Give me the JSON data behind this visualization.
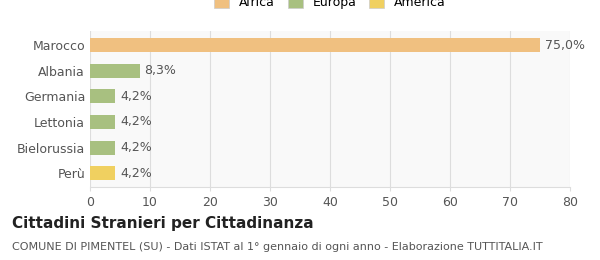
{
  "categories": [
    "Marocco",
    "Albania",
    "Germania",
    "Lettonia",
    "Bielorussia",
    "Perù"
  ],
  "values": [
    75.0,
    8.3,
    4.2,
    4.2,
    4.2,
    4.2
  ],
  "bar_colors": [
    "#f0c080",
    "#a8c080",
    "#a8c080",
    "#a8c080",
    "#a8c080",
    "#f0d060"
  ],
  "value_labels": [
    "75,0%",
    "8,3%",
    "4,2%",
    "4,2%",
    "4,2%",
    "4,2%"
  ],
  "legend_items": [
    {
      "label": "Africa",
      "color": "#f0c080"
    },
    {
      "label": "Europa",
      "color": "#a8c080"
    },
    {
      "label": "America",
      "color": "#f0d060"
    }
  ],
  "xlim": [
    0,
    80
  ],
  "xticks": [
    0,
    10,
    20,
    30,
    40,
    50,
    60,
    70,
    80
  ],
  "title": "Cittadini Stranieri per Cittadinanza",
  "subtitle": "COMUNE DI PIMENTEL (SU) - Dati ISTAT al 1° gennaio di ogni anno - Elaborazione TUTTITALIA.IT",
  "background_color": "#ffffff",
  "plot_bg_color": "#f9f9f9",
  "grid_color": "#dddddd",
  "bar_height": 0.55,
  "label_fontsize": 9,
  "title_fontsize": 11,
  "subtitle_fontsize": 8
}
